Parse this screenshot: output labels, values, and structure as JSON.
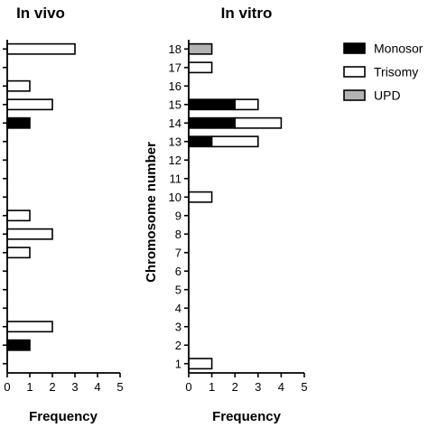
{
  "chart_data": [
    {
      "type": "bar",
      "orientation": "horizontal",
      "stacked": true,
      "title": "In vivo",
      "xlabel": "Frequency",
      "ylabel": "",
      "xlim": [
        0,
        5
      ],
      "x_ticks": [
        "0",
        "1",
        "2",
        "3",
        "4",
        "5"
      ],
      "categories": [
        "1",
        "2",
        "3",
        "4",
        "5",
        "6",
        "7",
        "8",
        "9",
        "10",
        "11",
        "12",
        "13",
        "14",
        "15",
        "16",
        "17",
        "18"
      ],
      "show_category_labels": false,
      "series": [
        {
          "name": "Monosomy",
          "values": [
            0,
            1,
            0,
            0,
            0,
            0,
            0,
            0,
            0,
            0,
            0,
            0,
            0,
            1,
            0,
            0,
            0,
            0
          ]
        },
        {
          "name": "Trisomy",
          "values": [
            0,
            0,
            2,
            0,
            0,
            0,
            1,
            2,
            1,
            0,
            0,
            0,
            0,
            0,
            2,
            1,
            0,
            3
          ]
        },
        {
          "name": "UPD",
          "values": [
            0,
            0,
            0,
            0,
            0,
            0,
            0,
            0,
            0,
            0,
            0,
            0,
            0,
            0,
            0,
            0,
            0,
            0
          ]
        }
      ]
    },
    {
      "type": "bar",
      "orientation": "horizontal",
      "stacked": true,
      "title": "In vitro",
      "xlabel": "Frequency",
      "ylabel": "Chromosome number",
      "xlim": [
        0,
        5
      ],
      "x_ticks": [
        "0",
        "1",
        "2",
        "3",
        "4",
        "5"
      ],
      "categories": [
        "1",
        "2",
        "3",
        "4",
        "5",
        "6",
        "7",
        "8",
        "9",
        "10",
        "11",
        "12",
        "13",
        "14",
        "15",
        "16",
        "17",
        "18"
      ],
      "show_category_labels": true,
      "series": [
        {
          "name": "Monosomy",
          "values": [
            0,
            0,
            0,
            0,
            0,
            0,
            0,
            0,
            0,
            0,
            0,
            0,
            1,
            2,
            2,
            0,
            0,
            0
          ]
        },
        {
          "name": "Trisomy",
          "values": [
            1,
            0,
            0,
            0,
            0,
            0,
            0,
            0,
            0,
            1,
            0,
            0,
            2,
            2,
            1,
            0,
            1,
            0
          ]
        },
        {
          "name": "UPD",
          "values": [
            0,
            0,
            0,
            0,
            0,
            0,
            0,
            0,
            0,
            0,
            0,
            0,
            0,
            0,
            0,
            0,
            0,
            1
          ]
        }
      ]
    }
  ],
  "legend": {
    "placement": "top-right",
    "items": [
      {
        "label": "Monosor",
        "color": "#000000"
      },
      {
        "label": "Trisomy",
        "color": "#ffffff"
      },
      {
        "label": "UPD",
        "color": "#b3b3b3"
      }
    ]
  }
}
